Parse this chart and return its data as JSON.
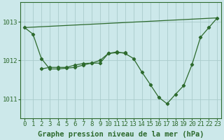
{
  "title": "Graphe pression niveau de la mer (hPa)",
  "background_color": "#cce8ea",
  "grid_color": "#aacccc",
  "line_color": "#2d6a2d",
  "ylim": [
    1010.5,
    1013.5
  ],
  "xlim": [
    -0.5,
    23.5
  ],
  "yticks": [
    1011,
    1012,
    1013
  ],
  "xticks": [
    0,
    1,
    2,
    3,
    4,
    5,
    6,
    7,
    8,
    9,
    10,
    11,
    12,
    13,
    14,
    15,
    16,
    17,
    18,
    19,
    20,
    21,
    22,
    23
  ],
  "series1_x": [
    0,
    1,
    2,
    3,
    4,
    5,
    6,
    7,
    8,
    9,
    10,
    11,
    12
  ],
  "series1_y": [
    1012.85,
    1012.68,
    1012.05,
    1011.78,
    1011.78,
    1011.8,
    1011.82,
    1011.88,
    1011.93,
    1012.0,
    1012.18,
    1012.2,
    1012.2
  ],
  "series2_x": [
    2,
    3,
    4,
    5,
    6,
    7,
    8,
    9,
    10,
    11,
    12,
    13,
    14,
    15,
    16,
    17,
    18,
    19,
    20,
    21,
    22,
    23
  ],
  "series2_y": [
    1011.78,
    1011.82,
    1011.82,
    1011.82,
    1011.88,
    1011.92,
    1011.93,
    1011.93,
    1012.18,
    1012.22,
    1012.18,
    1012.05,
    1011.7,
    1011.38,
    1011.05,
    1010.88,
    1011.12,
    1011.35,
    1011.9,
    1012.6,
    1012.85,
    1013.1
  ],
  "series3_x": [
    0,
    23
  ],
  "series3_y": [
    1012.85,
    1013.1
  ],
  "tick_fontsize": 6.5,
  "label_fontsize": 7.5
}
